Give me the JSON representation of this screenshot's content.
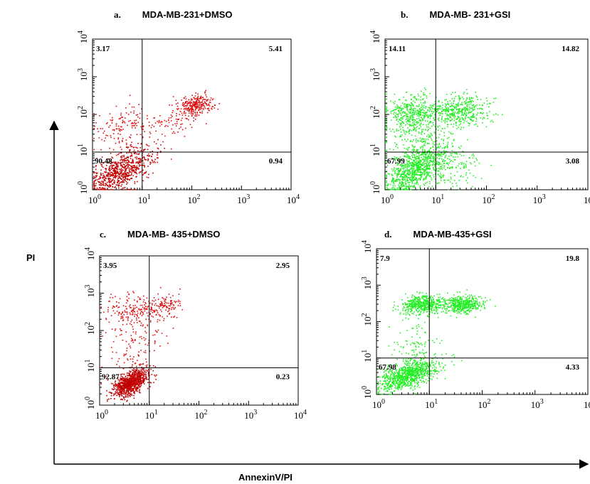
{
  "figure": {
    "y_axis_label": "PI",
    "x_axis_label": "AnnexinV/PI",
    "colors": {
      "red": "#dd1111",
      "red_dark": "#c00000",
      "green": "#22ee22",
      "axis": "#000000"
    }
  },
  "chart_data": [
    {
      "type": "scatter",
      "panel_letter": "a.",
      "title": "MDA-MB-231+DMSO",
      "xscale": "log",
      "yscale": "log",
      "xlim": [
        1,
        10000
      ],
      "ylim": [
        1,
        10000
      ],
      "x_tick_labels": [
        "10^0",
        "10^1",
        "10^2",
        "10^3",
        "10^4"
      ],
      "y_tick_labels": [
        "10^0",
        "10^1",
        "10^2",
        "10^3",
        "10^4"
      ],
      "quadrant_gate": {
        "x": 10,
        "y": 10
      },
      "quadrant_percentages": {
        "upper_left": "3.17",
        "upper_right": "5.41",
        "lower_left": "90.48",
        "lower_right": "0.94"
      },
      "point_color": "red",
      "clusters": [
        {
          "n": 700,
          "cx": 3.5,
          "cy": 3,
          "sx": 0.35,
          "sy": 0.32,
          "rho": 0.7
        },
        {
          "n": 70,
          "cx": 5,
          "cy": 6,
          "sx": 0.45,
          "sy": 0.4,
          "rho": 0.5
        },
        {
          "n": 130,
          "cx": 4,
          "cy": 50,
          "sx": 0.25,
          "sy": 0.3,
          "rho": 0.2
        },
        {
          "n": 280,
          "cx": 120,
          "cy": 180,
          "sx": 0.18,
          "sy": 0.14,
          "rho": 0.3
        },
        {
          "n": 90,
          "cx": 30,
          "cy": 70,
          "sx": 0.35,
          "sy": 0.25,
          "rho": 0.3
        }
      ]
    },
    {
      "type": "scatter",
      "panel_letter": "b.",
      "title": "MDA-MB- 231+GSI",
      "xscale": "log",
      "yscale": "log",
      "xlim": [
        1,
        10000
      ],
      "ylim": [
        1,
        10000
      ],
      "x_tick_labels": [
        "10^0",
        "10^1",
        "10^2",
        "10^3",
        "10^4"
      ],
      "y_tick_labels": [
        "10^0",
        "10^1",
        "10^2",
        "10^3",
        "10^4"
      ],
      "quadrant_gate": {
        "x": 10,
        "y": 10
      },
      "quadrant_percentages": {
        "upper_left": "14.11",
        "upper_right": "14.82",
        "lower_left": "67.99",
        "lower_right": "3.08"
      },
      "point_color": "green",
      "clusters": [
        {
          "n": 800,
          "cx": 4,
          "cy": 3.5,
          "sx": 0.3,
          "sy": 0.32,
          "rho": 0.6
        },
        {
          "n": 280,
          "cx": 4,
          "cy": 20,
          "sx": 0.35,
          "sy": 0.45,
          "rho": 0.1
        },
        {
          "n": 380,
          "cx": 3.5,
          "cy": 120,
          "sx": 0.3,
          "sy": 0.25,
          "rho": 0.1
        },
        {
          "n": 420,
          "cx": 30,
          "cy": 130,
          "sx": 0.3,
          "sy": 0.22,
          "rho": 0.1
        },
        {
          "n": 150,
          "cx": 18,
          "cy": 4,
          "sx": 0.3,
          "sy": 0.3,
          "rho": 0.1
        }
      ]
    },
    {
      "type": "scatter",
      "panel_letter": "c.",
      "title": "MDA-MB- 435+DMSO",
      "xscale": "log",
      "yscale": "log",
      "xlim": [
        1,
        10000
      ],
      "ylim": [
        1,
        10000
      ],
      "x_tick_labels": [
        "10^0",
        "10^1",
        "10^2",
        "10^3",
        "10^4"
      ],
      "y_tick_labels": [
        "10^0",
        "10^1",
        "10^2",
        "10^3",
        "10^4"
      ],
      "quadrant_gate": {
        "x": 10,
        "y": 10
      },
      "quadrant_percentages": {
        "upper_left": "3.95",
        "upper_right": "2.95",
        "lower_left": "92.87",
        "lower_right": "0.23"
      },
      "point_color": "red",
      "clusters": [
        {
          "n": 900,
          "cx": 4,
          "cy": 4,
          "sx": 0.18,
          "sy": 0.18,
          "rho": 0.5
        },
        {
          "n": 80,
          "cx": 5,
          "cy": 20,
          "sx": 0.3,
          "sy": 0.35,
          "rho": 0.1
        },
        {
          "n": 140,
          "cx": 4,
          "cy": 400,
          "sx": 0.25,
          "sy": 0.2,
          "rho": 0.1
        },
        {
          "n": 140,
          "cx": 18,
          "cy": 450,
          "sx": 0.22,
          "sy": 0.18,
          "rho": 0.1
        },
        {
          "n": 60,
          "cx": 5,
          "cy": 100,
          "sx": 0.3,
          "sy": 0.25,
          "rho": 0.1
        }
      ]
    },
    {
      "type": "scatter",
      "panel_letter": "d.",
      "title": "MDA-MB-435+GSI",
      "xscale": "log",
      "yscale": "log",
      "xlim": [
        1,
        10000
      ],
      "ylim": [
        1,
        10000
      ],
      "x_tick_labels": [
        "10^0",
        "10^1",
        "10^2",
        "10^3",
        "10^4"
      ],
      "y_tick_labels": [
        "10^0",
        "10^1",
        "10^2",
        "10^3",
        "10^4"
      ],
      "quadrant_gate": {
        "x": 10,
        "y": 10
      },
      "quadrant_percentages": {
        "upper_left": "7.9",
        "upper_right": "19.8",
        "lower_left": "67.98",
        "lower_right": "4.33"
      },
      "point_color": "green",
      "clusters": [
        {
          "n": 900,
          "cx": 4,
          "cy": 3.5,
          "sx": 0.28,
          "sy": 0.22,
          "rho": 0.6
        },
        {
          "n": 120,
          "cx": 5,
          "cy": 20,
          "sx": 0.25,
          "sy": 0.4,
          "rho": 0.1
        },
        {
          "n": 450,
          "cx": 7,
          "cy": 300,
          "sx": 0.2,
          "sy": 0.13,
          "rho": 0.1
        },
        {
          "n": 450,
          "cx": 40,
          "cy": 300,
          "sx": 0.2,
          "sy": 0.12,
          "rho": 0.1
        }
      ]
    }
  ]
}
